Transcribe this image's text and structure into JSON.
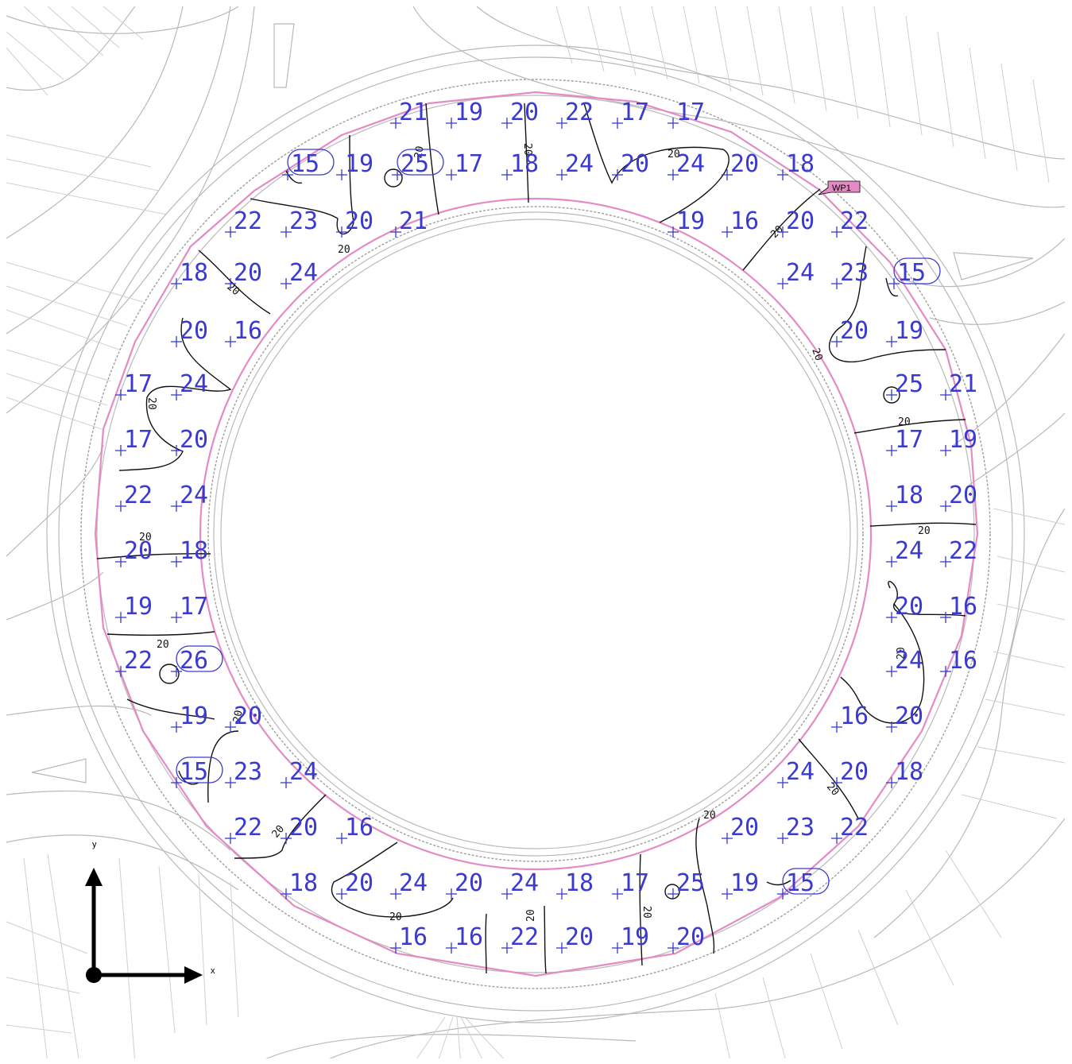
{
  "waypoint": {
    "label": "WP1",
    "color": "#e48bc5"
  },
  "axes": {
    "x_label": "x",
    "y_label": "y"
  },
  "isoline_label": "20",
  "colors": {
    "values": "#3a3ad0",
    "boundary": "#e48bc5",
    "isolines": "#111111",
    "site": "#b9b9b9"
  },
  "points": [
    {
      "v": "21"
    },
    {
      "v": "19"
    },
    {
      "v": "20"
    },
    {
      "v": "22"
    },
    {
      "v": "17"
    },
    {
      "v": "17"
    },
    {
      "v": "15",
      "circled": true
    },
    {
      "v": "19"
    },
    {
      "v": "25",
      "circled": true
    },
    {
      "v": "17"
    },
    {
      "v": "18"
    },
    {
      "v": "24"
    },
    {
      "v": "20"
    },
    {
      "v": "24"
    },
    {
      "v": "20"
    },
    {
      "v": "18"
    },
    {
      "v": "22"
    },
    {
      "v": "23"
    },
    {
      "v": "20"
    },
    {
      "v": "21"
    },
    {
      "v": "19"
    },
    {
      "v": "16"
    },
    {
      "v": "20"
    },
    {
      "v": "22"
    },
    {
      "v": "18"
    },
    {
      "v": "20"
    },
    {
      "v": "24"
    },
    {
      "v": "24"
    },
    {
      "v": "23"
    },
    {
      "v": "15",
      "circled": true
    },
    {
      "v": "20"
    },
    {
      "v": "16"
    },
    {
      "v": "20"
    },
    {
      "v": "19"
    },
    {
      "v": "17"
    },
    {
      "v": "24"
    },
    {
      "v": "25"
    },
    {
      "v": "21"
    },
    {
      "v": "17"
    },
    {
      "v": "20"
    },
    {
      "v": "17"
    },
    {
      "v": "19"
    },
    {
      "v": "22"
    },
    {
      "v": "24"
    },
    {
      "v": "18"
    },
    {
      "v": "20"
    },
    {
      "v": "20"
    },
    {
      "v": "18"
    },
    {
      "v": "24"
    },
    {
      "v": "22"
    },
    {
      "v": "19"
    },
    {
      "v": "17"
    },
    {
      "v": "20"
    },
    {
      "v": "16"
    },
    {
      "v": "22"
    },
    {
      "v": "26",
      "circled": true
    },
    {
      "v": "24"
    },
    {
      "v": "16"
    },
    {
      "v": "19"
    },
    {
      "v": "20"
    },
    {
      "v": "16"
    },
    {
      "v": "20"
    },
    {
      "v": "15",
      "circled": true
    },
    {
      "v": "23"
    },
    {
      "v": "24"
    },
    {
      "v": "24"
    },
    {
      "v": "20"
    },
    {
      "v": "18"
    },
    {
      "v": "22"
    },
    {
      "v": "20"
    },
    {
      "v": "16"
    },
    {
      "v": "20"
    },
    {
      "v": "23"
    },
    {
      "v": "22"
    },
    {
      "v": "18"
    },
    {
      "v": "20"
    },
    {
      "v": "24"
    },
    {
      "v": "20"
    },
    {
      "v": "24"
    },
    {
      "v": "18"
    },
    {
      "v": "17"
    },
    {
      "v": "25"
    },
    {
      "v": "19"
    },
    {
      "v": "15",
      "circled": true
    },
    {
      "v": "16"
    },
    {
      "v": "16"
    },
    {
      "v": "22"
    },
    {
      "v": "20"
    },
    {
      "v": "19"
    },
    {
      "v": "20"
    }
  ]
}
